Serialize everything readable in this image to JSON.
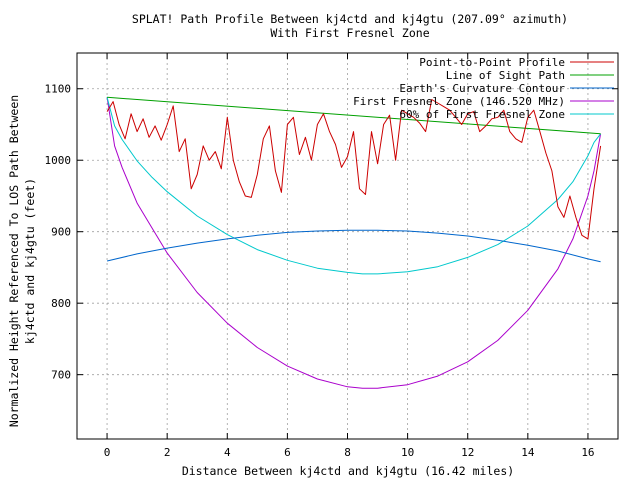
{
  "chart_data": {
    "type": "line",
    "title": "SPLAT! Path Profile Between kj4ctd and kj4gtu (207.09° azimuth)",
    "subtitle": "With First Fresnel Zone",
    "xlabel": "Distance Between kj4ctd and kj4gtu (16.42 miles)",
    "ylabel": "Normalized Height Referenced To LOS Path Between",
    "ylabel2": "kj4ctd and kj4gtu (feet)",
    "xlim": [
      -1,
      17
    ],
    "ylim": [
      610,
      1150
    ],
    "grid": true,
    "legend_position": "top-right",
    "x_ticks": [
      0,
      2,
      4,
      6,
      8,
      10,
      12,
      14,
      16
    ],
    "y_ticks": [
      700,
      800,
      900,
      1000,
      1100
    ],
    "series": [
      {
        "name": "Point-to-Point Profile",
        "color": "#cc0000",
        "x": [
          0,
          0.2,
          0.4,
          0.6,
          0.8,
          1.0,
          1.2,
          1.4,
          1.6,
          1.8,
          2.0,
          2.2,
          2.4,
          2.6,
          2.8,
          3.0,
          3.2,
          3.4,
          3.6,
          3.8,
          4.0,
          4.2,
          4.4,
          4.6,
          4.8,
          5.0,
          5.2,
          5.4,
          5.6,
          5.8,
          6.0,
          6.2,
          6.4,
          6.6,
          6.8,
          7.0,
          7.2,
          7.4,
          7.6,
          7.8,
          8.0,
          8.2,
          8.4,
          8.6,
          8.8,
          9.0,
          9.2,
          9.4,
          9.6,
          9.8,
          10.0,
          10.2,
          10.4,
          10.6,
          10.8,
          11.0,
          11.2,
          11.4,
          11.6,
          11.8,
          12.0,
          12.2,
          12.4,
          12.6,
          12.8,
          13.0,
          13.2,
          13.4,
          13.6,
          13.8,
          14.0,
          14.2,
          14.4,
          14.6,
          14.8,
          15.0,
          15.2,
          15.4,
          15.6,
          15.8,
          16.0,
          16.2,
          16.42
        ],
        "values": [
          1068,
          1082,
          1050,
          1030,
          1065,
          1040,
          1058,
          1032,
          1048,
          1028,
          1050,
          1076,
          1012,
          1030,
          960,
          980,
          1020,
          1000,
          1012,
          988,
          1060,
          1000,
          970,
          950,
          948,
          980,
          1030,
          1048,
          985,
          955,
          1050,
          1060,
          1008,
          1032,
          1000,
          1050,
          1065,
          1040,
          1022,
          990,
          1005,
          1040,
          960,
          952,
          1040,
          995,
          1050,
          1063,
          1000,
          1070,
          1065,
          1060,
          1052,
          1040,
          1085,
          1080,
          1075,
          1070,
          1060,
          1050,
          1065,
          1068,
          1040,
          1048,
          1058,
          1060,
          1070,
          1040,
          1030,
          1025,
          1060,
          1070,
          1040,
          1010,
          985,
          935,
          920,
          950,
          920,
          895,
          890,
          960,
          1020
        ]
      },
      {
        "name": "Line of Sight Path",
        "color": "#00a000",
        "x": [
          0,
          16.42
        ],
        "values": [
          1088,
          1037
        ]
      },
      {
        "name": "Earth's Curvature Contour",
        "color": "#0066cc",
        "x": [
          0,
          1,
          2,
          3,
          4,
          5,
          6,
          7,
          8,
          9,
          10,
          11,
          12,
          13,
          14,
          15,
          16,
          16.42
        ],
        "values": [
          859,
          869,
          877,
          884,
          890,
          895,
          899,
          901,
          902,
          902,
          901,
          898,
          894,
          888,
          881,
          873,
          862,
          858
        ]
      },
      {
        "name": "First Fresnel Zone (146.520 MHz)",
        "color": "#aa00cc",
        "x": [
          0,
          0.25,
          0.5,
          1,
          1.5,
          2,
          3,
          4,
          5,
          6,
          7,
          8,
          8.5,
          9,
          10,
          11,
          12,
          13,
          14,
          15,
          15.5,
          16,
          16.2,
          16.42
        ],
        "values": [
          1088,
          1020,
          990,
          940,
          905,
          870,
          815,
          772,
          738,
          712,
          694,
          683,
          681,
          681,
          686,
          698,
          718,
          748,
          790,
          848,
          890,
          950,
          985,
          1037
        ]
      },
      {
        "name": "60% of First Fresnel Zone",
        "color": "#00c8cc",
        "x": [
          0,
          0.25,
          0.5,
          1,
          1.5,
          2,
          3,
          4,
          5,
          6,
          7,
          8,
          8.5,
          9,
          10,
          11,
          12,
          13,
          14,
          15,
          15.5,
          16,
          16.2,
          16.42
        ],
        "values": [
          1088,
          1048,
          1029,
          999,
          976,
          956,
          922,
          896,
          875,
          860,
          849,
          843,
          841,
          841,
          844,
          851,
          864,
          882,
          908,
          945,
          970,
          1006,
          1025,
          1037
        ]
      }
    ]
  }
}
